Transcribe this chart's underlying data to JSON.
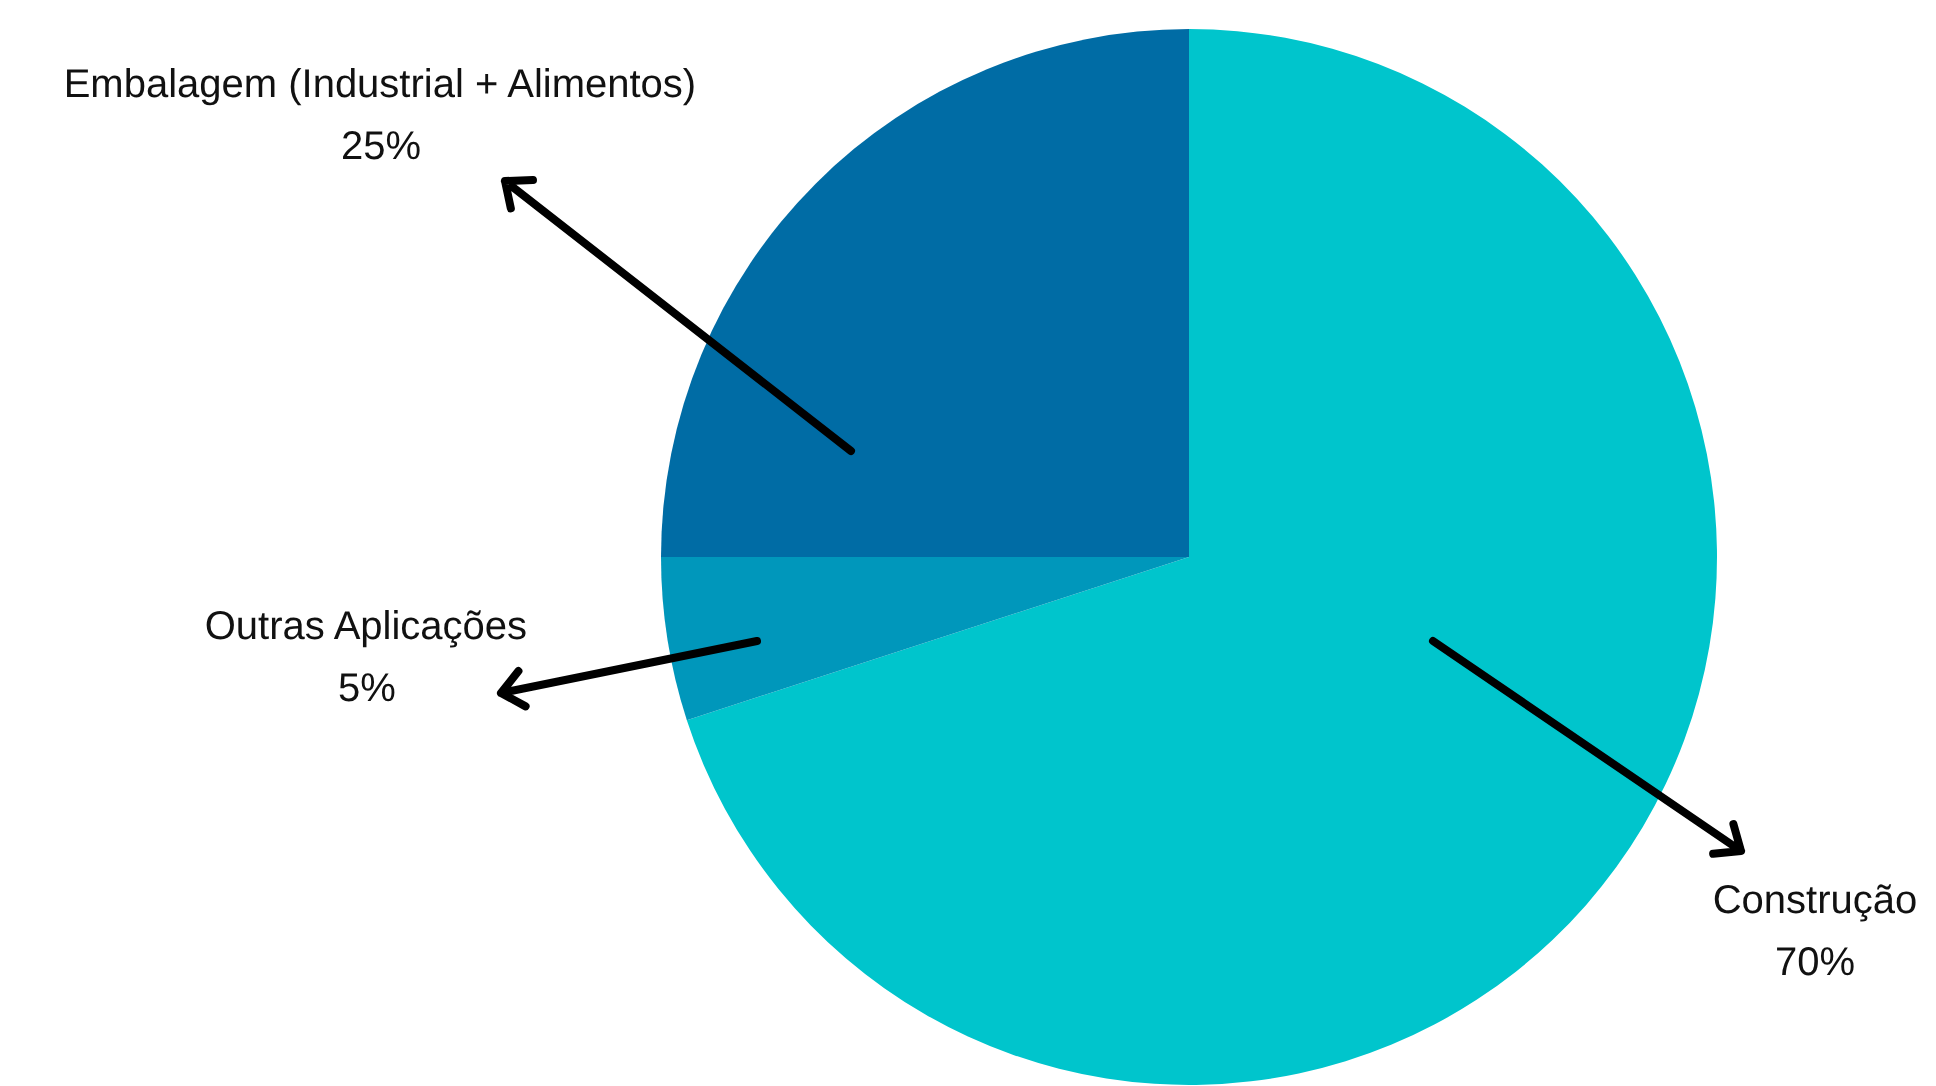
{
  "chart_data": {
    "type": "pie",
    "categories": [
      "Construção",
      "Outras Aplicações",
      "Embalagem (Industrial + Alimentos)"
    ],
    "values": [
      70,
      5,
      25
    ],
    "colors": [
      "#00c5cc",
      "#0097bb",
      "#006ca5"
    ],
    "value_labels": [
      "70%",
      "5%",
      "25%"
    ]
  }
}
